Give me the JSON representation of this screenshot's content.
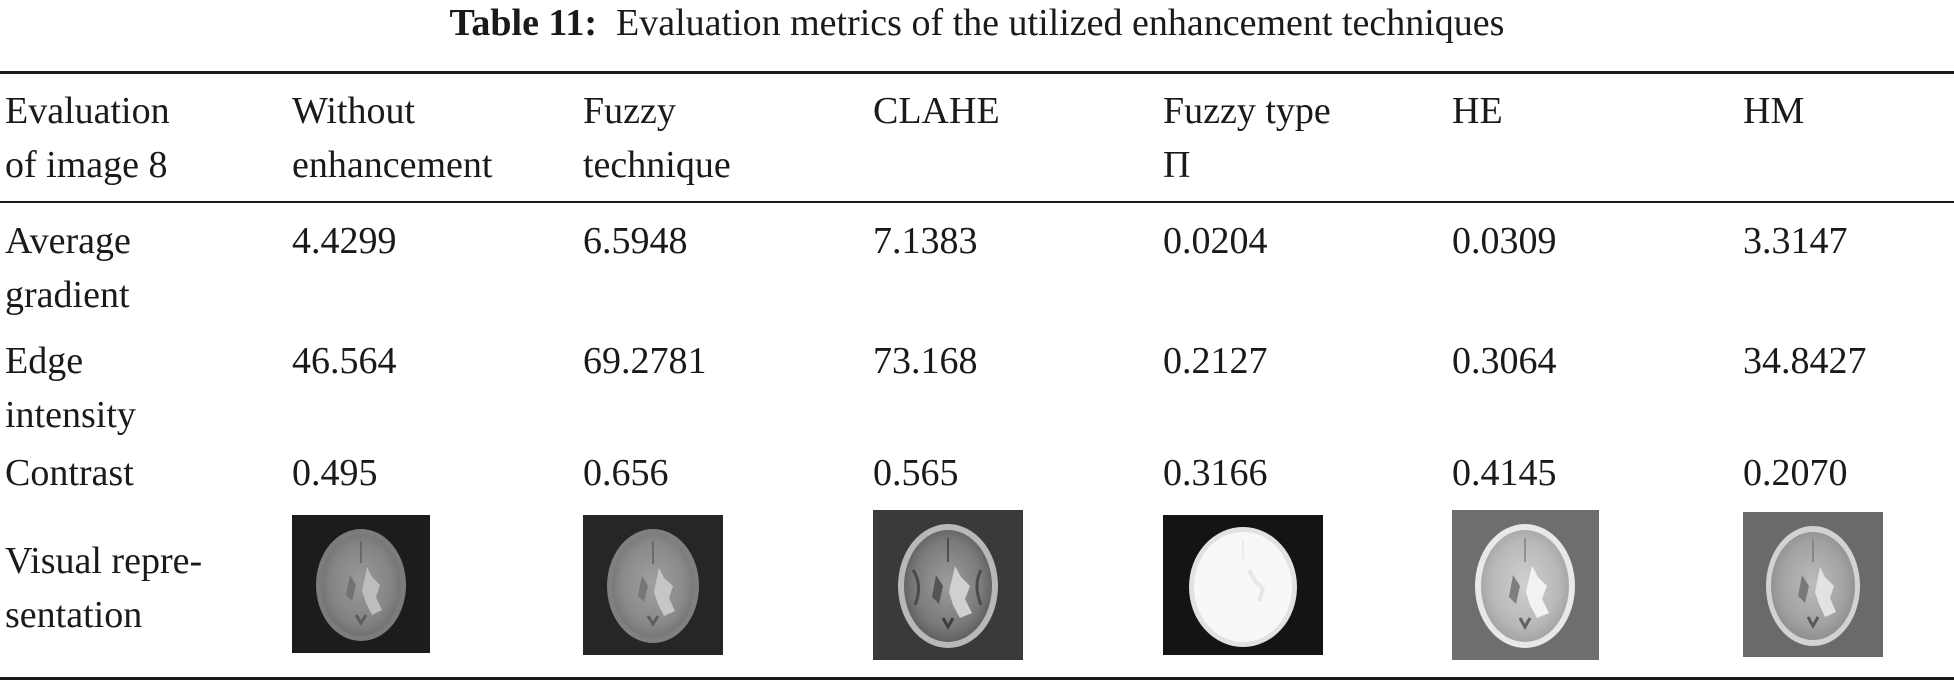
{
  "caption": {
    "label": "Table 11:",
    "text": "Evaluation metrics of the utilized enhancement techniques"
  },
  "table": {
    "header": [
      [
        "Evaluation",
        "of image 8"
      ],
      [
        "Without",
        "enhancement"
      ],
      [
        "Fuzzy",
        "technique"
      ],
      [
        "CLAHE"
      ],
      [
        "Fuzzy type",
        "Π"
      ],
      [
        "HE"
      ],
      [
        "HM"
      ]
    ],
    "rows": [
      {
        "label": [
          "Average",
          "gradient"
        ],
        "values": [
          "4.4299",
          "6.5948",
          "7.1383",
          "0.0204",
          "0.0309",
          "3.3147"
        ]
      },
      {
        "label": [
          "Edge",
          "intensity"
        ],
        "values": [
          "46.564",
          "69.2781",
          "73.168",
          "0.2127",
          "0.3064",
          "34.8427"
        ]
      },
      {
        "label": [
          "Contrast"
        ],
        "values": [
          "0.495",
          "0.656",
          "0.565",
          "0.3166",
          "0.4145",
          "0.2070"
        ]
      }
    ],
    "visual_row": {
      "label": [
        "Visual repre-",
        "sentation"
      ],
      "images": [
        "brain-mri-without-enhancement",
        "brain-mri-fuzzy-technique",
        "brain-mri-clahe",
        "brain-mri-fuzzy-type-pi",
        "brain-mri-he",
        "brain-mri-hm"
      ]
    }
  }
}
